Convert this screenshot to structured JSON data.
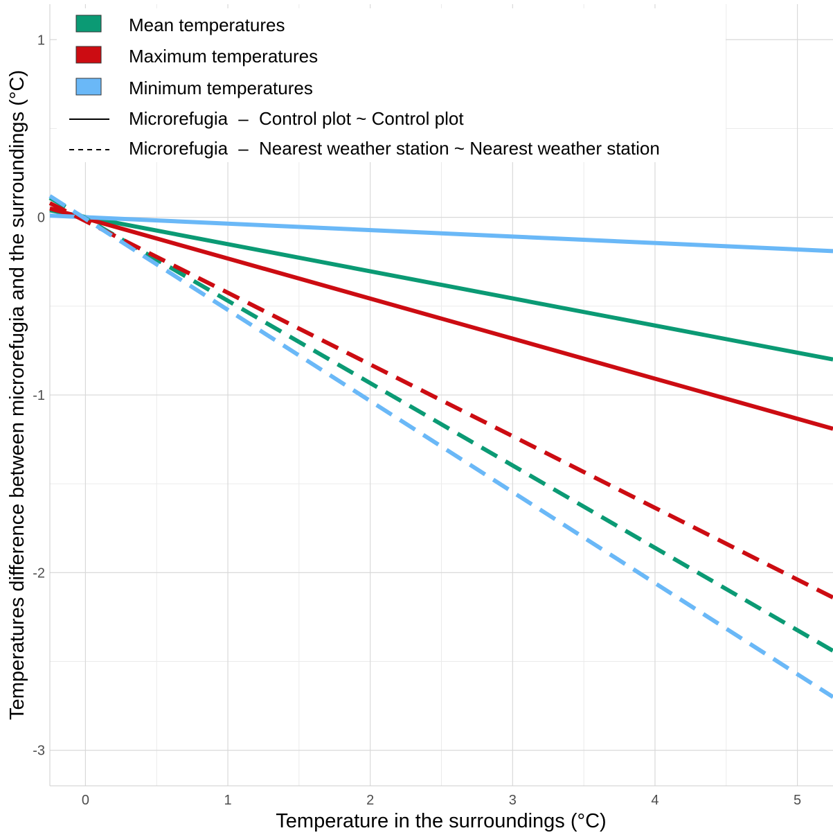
{
  "chart_data": {
    "type": "line",
    "xlabel": "Temperature in the surroundings (°C)",
    "ylabel": "Temperatures difference between  microrefugia and the surroundings (°C)",
    "xlim": [
      -0.25,
      5.25
    ],
    "ylim": [
      -3.2,
      1.2
    ],
    "x_ticks": [
      0,
      1,
      2,
      3,
      4,
      5
    ],
    "x_tick_labels": [
      "0",
      "1",
      "2",
      "3",
      "4",
      "5"
    ],
    "y_ticks": [
      1,
      0,
      -1,
      -2,
      -3
    ],
    "y_tick_labels": [
      "1",
      "0",
      "-1",
      "-2",
      "-3"
    ],
    "grid": true,
    "legend_position": "top-left",
    "legend": {
      "fill_entries": [
        {
          "label": "Mean temperatures",
          "color": "#0b9a74"
        },
        {
          "label": "Maximum temperatures",
          "color": "#cc0c12"
        },
        {
          "label": "Minimum temperatures",
          "color": "#6ab8f7"
        }
      ],
      "line_entries": [
        {
          "style": "solid",
          "left": "Microrefugia",
          "sep": "–",
          "right": "Control plot ~ Control plot"
        },
        {
          "style": "dashed",
          "left": "Microrefugia",
          "sep": "–",
          "right": "Nearest weather station ~ Nearest weather station"
        }
      ]
    },
    "series": [
      {
        "group": "Mean temperatures",
        "style": "solid",
        "color": "#0b9a74",
        "x": [
          -0.25,
          5.25
        ],
        "y": [
          0.04,
          -0.8
        ]
      },
      {
        "group": "Maximum temperatures",
        "style": "solid",
        "color": "#cc0c12",
        "x": [
          -0.25,
          5.25
        ],
        "y": [
          0.05,
          -1.19
        ]
      },
      {
        "group": "Minimum temperatures",
        "style": "solid",
        "color": "#6ab8f7",
        "x": [
          -0.25,
          5.25
        ],
        "y": [
          0.01,
          -0.19
        ]
      },
      {
        "group": "Mean temperatures",
        "style": "dashed",
        "color": "#0b9a74",
        "x": [
          -0.25,
          5.25
        ],
        "y": [
          0.11,
          -2.44
        ]
      },
      {
        "group": "Maximum temperatures",
        "style": "dashed",
        "color": "#cc0c12",
        "x": [
          -0.25,
          5.25
        ],
        "y": [
          0.08,
          -2.14
        ]
      },
      {
        "group": "Minimum temperatures",
        "style": "dashed",
        "color": "#6ab8f7",
        "x": [
          -0.25,
          5.25
        ],
        "y": [
          0.12,
          -2.7
        ]
      }
    ]
  }
}
